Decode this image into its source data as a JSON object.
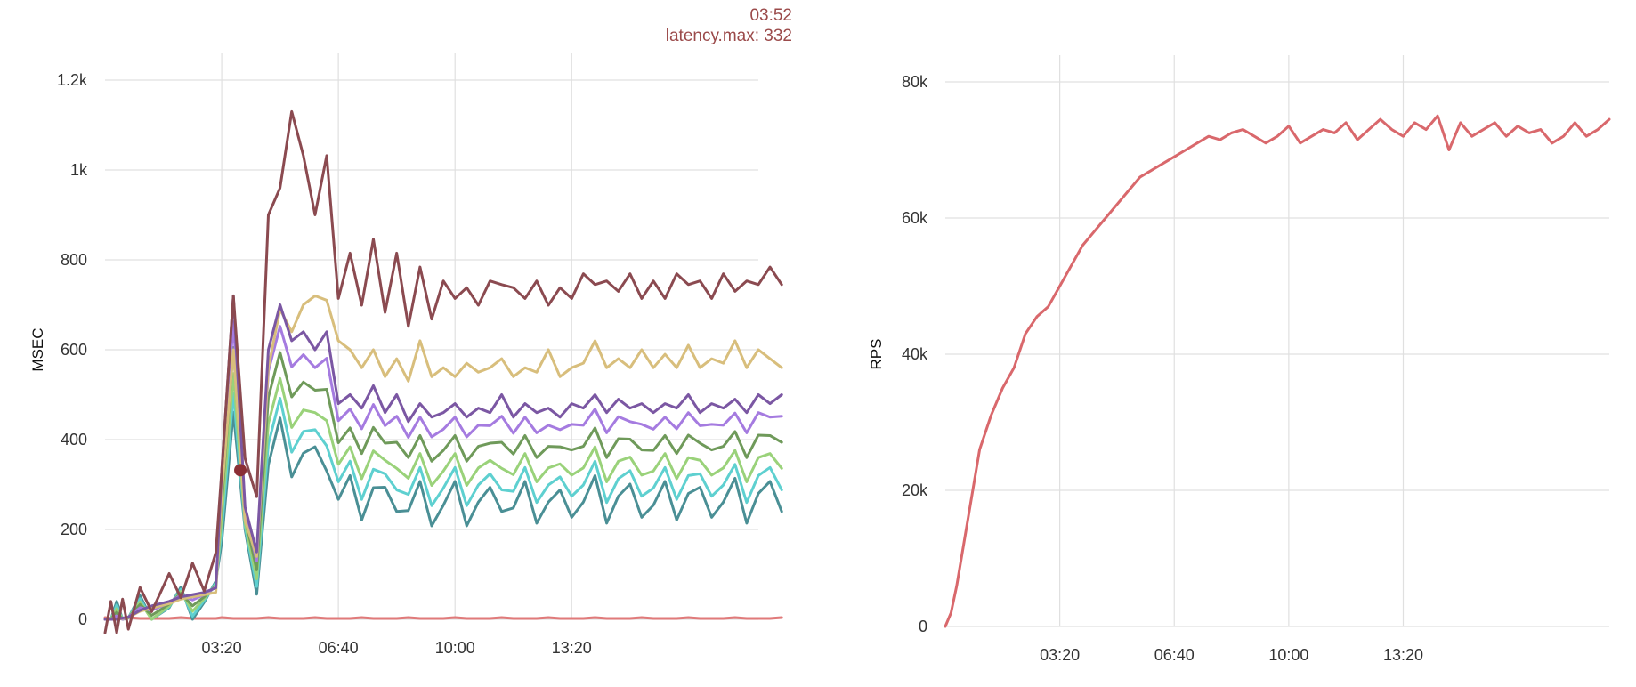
{
  "chart_data": [
    {
      "type": "line",
      "ylabel": "MSEC",
      "xlabel": "",
      "x_ticks": [
        "03:20",
        "06:40",
        "10:00",
        "13:20"
      ],
      "y_ticks": [
        "0",
        "200",
        "400",
        "600",
        "800",
        "1k",
        "1.2k"
      ],
      "ylim": [
        0,
        1200
      ],
      "grid": true,
      "legend": "none",
      "tooltip": {
        "time": "03:52",
        "text": "latency.max: 332",
        "series": "latency.max",
        "value": 332
      },
      "colors": [
        "#8b4a50",
        "#d8be7c",
        "#7b57a3",
        "#a57be0",
        "#6f9a5a",
        "#9ad27a",
        "#5ed0d0",
        "#4a8f95",
        "#e07a7a"
      ],
      "x_minutes": [
        0,
        10,
        20,
        30,
        40,
        60,
        80,
        110,
        130,
        150,
        170,
        190,
        200,
        220,
        240,
        260,
        280,
        300,
        320,
        340,
        360,
        380,
        400,
        420,
        440,
        460,
        480,
        500,
        520,
        540,
        560,
        580,
        600,
        620,
        640,
        660,
        680,
        700,
        720,
        740,
        760,
        780,
        800,
        820,
        840,
        860,
        880,
        900,
        920,
        940,
        960,
        980,
        1000,
        1020,
        1040,
        1060,
        1080,
        1100,
        1120,
        1140,
        1160
      ],
      "series": [
        {
          "values": [
            0,
            0,
            0,
            3,
            5,
            20,
            30,
            40,
            50,
            55,
            60,
            70,
            330,
            720,
            250,
            150,
            600,
            700,
            620,
            640,
            600,
            640,
            480,
            500,
            470,
            520,
            460,
            500,
            440,
            480,
            450,
            460,
            480,
            450,
            470,
            460,
            500,
            450,
            480,
            460,
            470,
            450,
            480,
            470,
            500,
            460,
            490,
            470,
            480,
            460,
            480,
            470,
            500,
            460,
            480,
            470,
            490,
            460,
            500,
            480,
            500
          ]
        },
        {
          "values": [
            0,
            0,
            0,
            2,
            4,
            18,
            25,
            35,
            45,
            50,
            55,
            60,
            280,
            600,
            220,
            140,
            560,
            690,
            640,
            700,
            720,
            710,
            620,
            600,
            560,
            600,
            540,
            580,
            530,
            620,
            540,
            560,
            540,
            570,
            550,
            560,
            580,
            540,
            560,
            550,
            600,
            540,
            560,
            570,
            620,
            560,
            580,
            560,
            600,
            560,
            590,
            560,
            610,
            560,
            580,
            570,
            620,
            560,
            600,
            580,
            560
          ]
        }
      ]
    },
    {
      "type": "line",
      "ylabel": "RPS",
      "xlabel": "",
      "x_ticks": [
        "03:20",
        "06:40",
        "10:00",
        "13:20"
      ],
      "y_ticks": [
        "0",
        "20k",
        "40k",
        "60k",
        "80k"
      ],
      "ylim": [
        0,
        80000
      ],
      "grid": true,
      "legend": "none",
      "colors": [
        "#d9686c"
      ],
      "x_minutes": [
        0,
        10,
        20,
        40,
        60,
        80,
        100,
        120,
        140,
        160,
        180,
        200,
        220,
        240,
        260,
        280,
        300,
        320,
        340,
        360,
        380,
        400,
        420,
        440,
        460,
        480,
        500,
        520,
        540,
        560,
        580,
        600,
        620,
        640,
        660,
        680,
        700,
        720,
        740,
        760,
        780,
        800,
        820,
        840,
        860,
        880,
        900,
        920,
        940,
        960,
        980,
        1000,
        1020,
        1040,
        1060,
        1080,
        1100,
        1120,
        1140,
        1160
      ],
      "series": [
        {
          "name": "",
          "values": [
            0,
            2000,
            6000,
            16000,
            26000,
            31000,
            35000,
            38000,
            43000,
            45500,
            47000,
            50000,
            53000,
            56000,
            58000,
            60000,
            62000,
            64000,
            66000,
            67000,
            68000,
            69000,
            70000,
            71000,
            72000,
            71500,
            72500,
            73000,
            72000,
            71000,
            72000,
            73500,
            71000,
            72000,
            73000,
            72500,
            74000,
            71500,
            73000,
            74500,
            73000,
            72000,
            74000,
            73000,
            75000,
            70000,
            74000,
            72000,
            73000,
            74000,
            72000,
            73500,
            72500,
            73000,
            71000,
            72000,
            74000,
            72000,
            73000,
            74500
          ]
        }
      ]
    }
  ]
}
